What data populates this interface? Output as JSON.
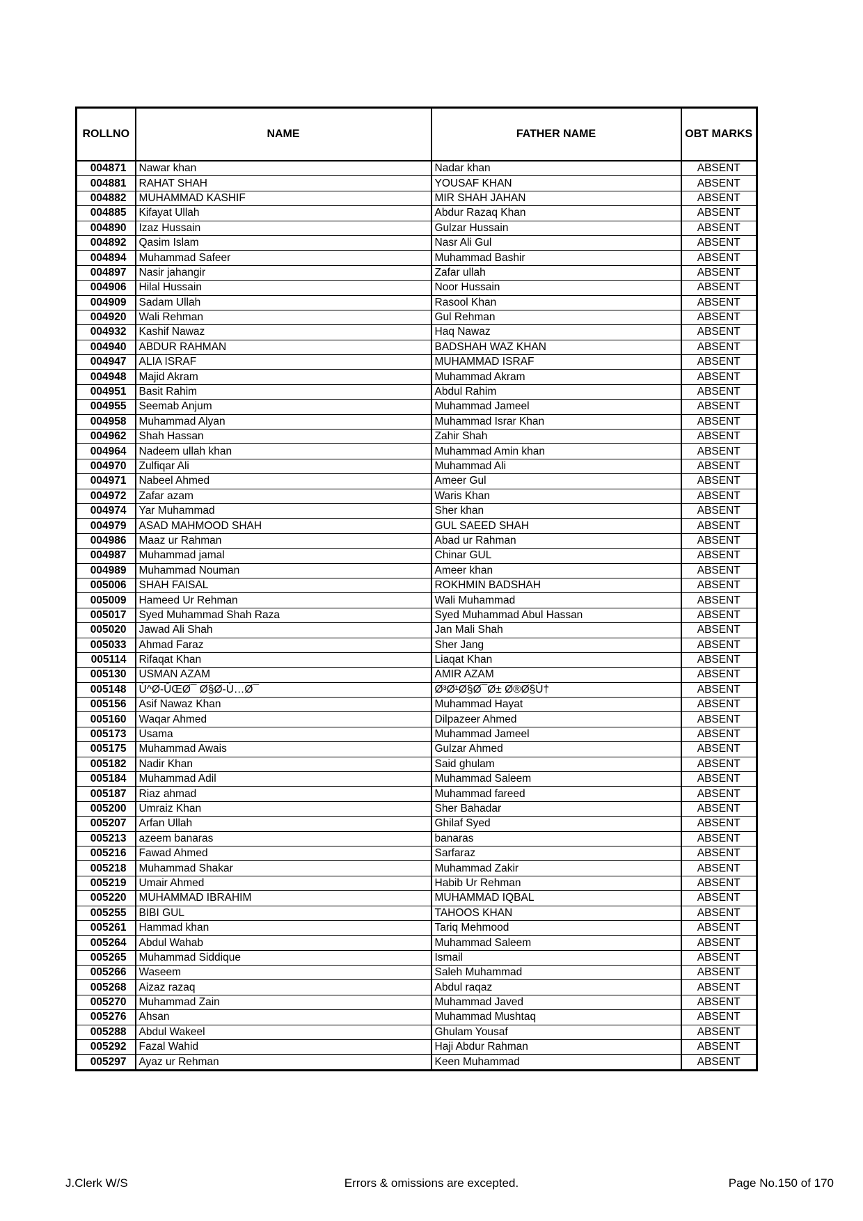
{
  "table": {
    "headers": [
      "ROLLNO",
      "NAME",
      "FATHER NAME",
      "OBT MARKS"
    ],
    "rows": [
      [
        "004871",
        "Nawar khan",
        "Nadar khan",
        "ABSENT"
      ],
      [
        "004881",
        "RAHAT SHAH",
        "YOUSAF KHAN",
        "ABSENT"
      ],
      [
        "004882",
        "MUHAMMAD KASHIF",
        "MIR SHAH JAHAN",
        "ABSENT"
      ],
      [
        "004885",
        "Kifayat Ullah",
        "Abdur Razaq Khan",
        "ABSENT"
      ],
      [
        "004890",
        "Izaz Hussain",
        "Gulzar Hussain",
        "ABSENT"
      ],
      [
        "004892",
        "Qasim Islam",
        "Nasr Ali Gul",
        "ABSENT"
      ],
      [
        "004894",
        "Muhammad Safeer",
        "Muhammad Bashir",
        "ABSENT"
      ],
      [
        "004897",
        "Nasir jahangir",
        "Zafar ullah",
        "ABSENT"
      ],
      [
        "004906",
        "Hilal Hussain",
        "Noor Hussain",
        "ABSENT"
      ],
      [
        "004909",
        "Sadam Ullah",
        "Rasool Khan",
        "ABSENT"
      ],
      [
        "004920",
        "Wali Rehman",
        "Gul Rehman",
        "ABSENT"
      ],
      [
        "004932",
        "Kashif Nawaz",
        "Haq Nawaz",
        "ABSENT"
      ],
      [
        "004940",
        "ABDUR RAHMAN",
        "BADSHAH WAZ KHAN",
        "ABSENT"
      ],
      [
        "004947",
        "ALIA ISRAF",
        "MUHAMMAD ISRAF",
        "ABSENT"
      ],
      [
        "004948",
        "Majid Akram",
        "Muhammad Akram",
        "ABSENT"
      ],
      [
        "004951",
        "Basit Rahim",
        "Abdul Rahim",
        "ABSENT"
      ],
      [
        "004955",
        "Seemab Anjum",
        "Muhammad Jameel",
        "ABSENT"
      ],
      [
        "004958",
        "Muhammad Alyan",
        "Muhammad Israr Khan",
        "ABSENT"
      ],
      [
        "004962",
        "Shah Hassan",
        "Zahir Shah",
        "ABSENT"
      ],
      [
        "004964",
        "Nadeem ullah khan",
        "Muhammad Amin khan",
        "ABSENT"
      ],
      [
        "004970",
        "Zulfiqar Ali",
        "Muhammad Ali",
        "ABSENT"
      ],
      [
        "004971",
        "Nabeel Ahmed",
        "Ameer Gul",
        "ABSENT"
      ],
      [
        "004972",
        "Zafar azam",
        "Waris Khan",
        "ABSENT"
      ],
      [
        "004974",
        "Yar Muhammad",
        "Sher khan",
        "ABSENT"
      ],
      [
        "004979",
        "ASAD MAHMOOD SHAH",
        "GUL SAEED SHAH",
        "ABSENT"
      ],
      [
        "004986",
        "Maaz ur Rahman",
        "Abad ur Rahman",
        "ABSENT"
      ],
      [
        "004987",
        "Muhammad jamal",
        "Chinar GUL",
        "ABSENT"
      ],
      [
        "004989",
        "Muhammad Nouman",
        "Ameer khan",
        "ABSENT"
      ],
      [
        "005006",
        "SHAH FAISAL",
        "ROKHMIN BADSHAH",
        "ABSENT"
      ],
      [
        "005009",
        "Hameed Ur Rehman",
        "Wali Muhammad",
        "ABSENT"
      ],
      [
        "005017",
        "Syed Muhammad Shah Raza",
        "Syed Muhammad Abul Hassan",
        "ABSENT"
      ],
      [
        "005020",
        "Jawad Ali Shah",
        "Jan Mali Shah",
        "ABSENT"
      ],
      [
        "005033",
        "Ahmad Faraz",
        "Sher Jang",
        "ABSENT"
      ],
      [
        "005114",
        "Rifaqat Khan",
        "Liaqat Khan",
        "ABSENT"
      ],
      [
        "005130",
        "USMAN AZAM",
        "AMIR AZAM",
        "ABSENT"
      ],
      [
        "005148",
        "Ù^Ø-ÛŒØ¯ Ø§Ø-Ù…Ø¯",
        "Ø³Ø¹Ø§Ø¯Ø± Ø®Ø§Ù†",
        "ABSENT"
      ],
      [
        "005156",
        "Asif Nawaz Khan",
        "Muhammad Hayat",
        "ABSENT"
      ],
      [
        "005160",
        "Waqar Ahmed",
        "Dilpazeer Ahmed",
        "ABSENT"
      ],
      [
        "005173",
        "Usama",
        "Muhammad Jameel",
        "ABSENT"
      ],
      [
        "005175",
        "Muhammad Awais",
        "Gulzar Ahmed",
        "ABSENT"
      ],
      [
        "005182",
        "Nadir Khan",
        "Said ghulam",
        "ABSENT"
      ],
      [
        "005184",
        "Muhammad Adil",
        "Muhammad Saleem",
        "ABSENT"
      ],
      [
        "005187",
        "Riaz ahmad",
        "Muhammad fareed",
        "ABSENT"
      ],
      [
        "005200",
        "Umraiz Khan",
        "Sher Bahadar",
        "ABSENT"
      ],
      [
        "005207",
        "Arfan Ullah",
        "Ghilaf Syed",
        "ABSENT"
      ],
      [
        "005213",
        "azeem banaras",
        "banaras",
        "ABSENT"
      ],
      [
        "005216",
        "Fawad Ahmed",
        "Sarfaraz",
        "ABSENT"
      ],
      [
        "005218",
        "Muhammad Shakar",
        "Muhammad Zakir",
        "ABSENT"
      ],
      [
        "005219",
        "Umair Ahmed",
        "Habib Ur Rehman",
        "ABSENT"
      ],
      [
        "005220",
        "MUHAMMAD IBRAHIM",
        "MUHAMMAD IQBAL",
        "ABSENT"
      ],
      [
        "005255",
        "BIBI GUL",
        "TAHOOS KHAN",
        "ABSENT"
      ],
      [
        "005261",
        "Hammad khan",
        "Tariq Mehmood",
        "ABSENT"
      ],
      [
        "005264",
        "Abdul Wahab",
        "Muhammad Saleem",
        "ABSENT"
      ],
      [
        "005265",
        "Muhammad Siddique",
        "Ismail",
        "ABSENT"
      ],
      [
        "005266",
        "Waseem",
        "Saleh Muhammad",
        "ABSENT"
      ],
      [
        "005268",
        "Aizaz razaq",
        "Abdul raqaz",
        "ABSENT"
      ],
      [
        "005270",
        "Muhammad Zain",
        "Muhammad Javed",
        "ABSENT"
      ],
      [
        "005276",
        "Ahsan",
        "Muhammad Mushtaq",
        "ABSENT"
      ],
      [
        "005288",
        "Abdul Wakeel",
        "Ghulam Yousaf",
        "ABSENT"
      ],
      [
        "005292",
        "Fazal Wahid",
        "Haji Abdur Rahman",
        "ABSENT"
      ],
      [
        "005297",
        "Ayaz ur Rehman",
        "Keen Muhammad",
        "ABSENT"
      ]
    ]
  },
  "footer": {
    "left": "J.Clerk W/S",
    "center": "Errors & omissions are excepted.",
    "right": "Page No.150 of 170"
  }
}
